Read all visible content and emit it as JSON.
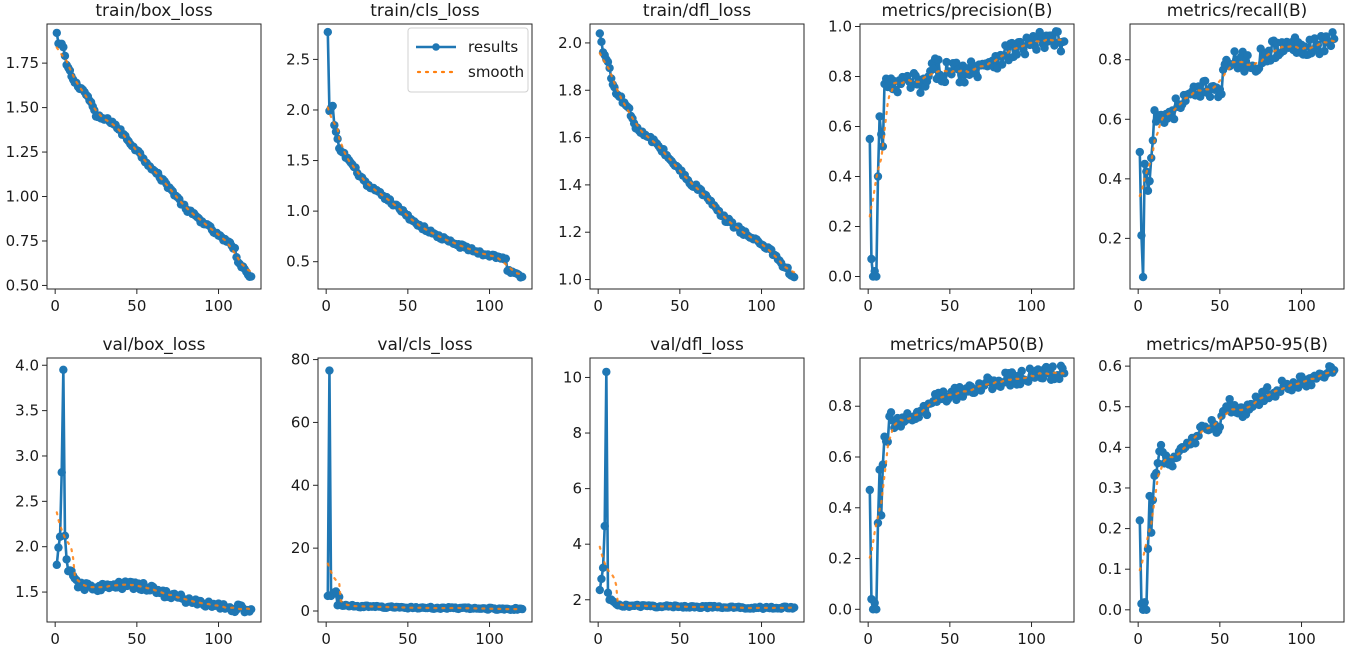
{
  "figure": {
    "colors": {
      "results": "#1f77b4",
      "smooth": "#ff7f0e",
      "frame": "#262626"
    },
    "legend": {
      "entries": [
        "results",
        "smooth"
      ],
      "panel": "train/cls_loss",
      "placement": "upper-right"
    }
  },
  "chart_data": [
    {
      "type": "line",
      "title": "train/box_loss",
      "xlabel": "",
      "ylabel": "",
      "xlim": [
        -5,
        126
      ],
      "ylim": [
        0.48,
        1.97
      ],
      "xticks": [
        0,
        50,
        100
      ],
      "yticks": [
        0.5,
        0.75,
        1.0,
        1.25,
        1.5,
        1.75
      ],
      "ytick_labels": [
        "0.50",
        "0.75",
        "1.00",
        "1.25",
        "1.50",
        "1.75"
      ],
      "epochs": 120,
      "series": [
        {
          "name": "results",
          "anchors": [
            [
              1,
              1.92
            ],
            [
              2,
              1.86
            ],
            [
              5,
              1.84
            ],
            [
              7,
              1.74
            ],
            [
              12,
              1.64
            ],
            [
              17,
              1.6
            ],
            [
              22,
              1.53
            ],
            [
              25,
              1.45
            ],
            [
              35,
              1.42
            ],
            [
              50,
              1.26
            ],
            [
              60,
              1.15
            ],
            [
              70,
              1.05
            ],
            [
              80,
              0.93
            ],
            [
              90,
              0.86
            ],
            [
              100,
              0.78
            ],
            [
              110,
              0.71
            ],
            [
              112,
              0.63
            ],
            [
              120,
              0.55
            ]
          ],
          "noise": 0.012
        },
        {
          "name": "smooth",
          "type": "smoothed"
        }
      ],
      "grid": false
    },
    {
      "type": "line",
      "title": "train/cls_loss",
      "xlim": [
        -5,
        126
      ],
      "ylim": [
        0.23,
        2.85
      ],
      "xticks": [
        0,
        50,
        100
      ],
      "yticks": [
        0.5,
        1.0,
        1.5,
        2.0,
        2.5
      ],
      "ytick_labels": [
        "0.5",
        "1.0",
        "1.5",
        "2.0",
        "2.5"
      ],
      "epochs": 120,
      "series": [
        {
          "name": "results",
          "anchors": [
            [
              1,
              2.77
            ],
            [
              2,
              1.99
            ],
            [
              4,
              2.04
            ],
            [
              5,
              1.85
            ],
            [
              8,
              1.62
            ],
            [
              15,
              1.48
            ],
            [
              25,
              1.25
            ],
            [
              35,
              1.15
            ],
            [
              45,
              1.02
            ],
            [
              55,
              0.88
            ],
            [
              65,
              0.78
            ],
            [
              75,
              0.7
            ],
            [
              85,
              0.64
            ],
            [
              95,
              0.58
            ],
            [
              105,
              0.55
            ],
            [
              110,
              0.53
            ],
            [
              111,
              0.41
            ],
            [
              120,
              0.35
            ]
          ],
          "noise": 0.02
        },
        {
          "name": "smooth",
          "type": "smoothed"
        }
      ],
      "grid": false
    },
    {
      "type": "line",
      "title": "train/dfl_loss",
      "xlim": [
        -5,
        126
      ],
      "ylim": [
        0.96,
        2.08
      ],
      "xticks": [
        0,
        50,
        100
      ],
      "yticks": [
        1.0,
        1.2,
        1.4,
        1.6,
        1.8,
        2.0
      ],
      "ytick_labels": [
        "1.0",
        "1.2",
        "1.4",
        "1.6",
        "1.8",
        "2.0"
      ],
      "epochs": 120,
      "series": [
        {
          "name": "results",
          "anchors": [
            [
              1,
              2.04
            ],
            [
              3,
              1.96
            ],
            [
              6,
              1.92
            ],
            [
              8,
              1.85
            ],
            [
              12,
              1.78
            ],
            [
              18,
              1.73
            ],
            [
              22,
              1.66
            ],
            [
              26,
              1.62
            ],
            [
              35,
              1.58
            ],
            [
              45,
              1.5
            ],
            [
              55,
              1.42
            ],
            [
              65,
              1.36
            ],
            [
              75,
              1.27
            ],
            [
              85,
              1.22
            ],
            [
              95,
              1.17
            ],
            [
              105,
              1.13
            ],
            [
              112,
              1.07
            ],
            [
              120,
              1.01
            ]
          ],
          "noise": 0.012
        },
        {
          "name": "smooth",
          "type": "smoothed"
        }
      ],
      "grid": false
    },
    {
      "type": "line",
      "title": "metrics/precision(B)",
      "xlim": [
        -5,
        126
      ],
      "ylim": [
        -0.05,
        1.01
      ],
      "xticks": [
        0,
        50,
        100
      ],
      "yticks": [
        0.0,
        0.2,
        0.4,
        0.6,
        0.8,
        1.0
      ],
      "ytick_labels": [
        "0.0",
        "0.2",
        "0.4",
        "0.6",
        "0.8",
        "1.0"
      ],
      "epochs": 120,
      "series": [
        {
          "name": "results",
          "anchors": [
            [
              1,
              0.55
            ],
            [
              2,
              0.07
            ],
            [
              3,
              0.0
            ],
            [
              5,
              0.0
            ],
            [
              6,
              0.4
            ],
            [
              7,
              0.64
            ],
            [
              9,
              0.52
            ],
            [
              10,
              0.77
            ],
            [
              15,
              0.75
            ],
            [
              25,
              0.78
            ],
            [
              35,
              0.76
            ],
            [
              40,
              0.83
            ],
            [
              50,
              0.82
            ],
            [
              60,
              0.82
            ],
            [
              70,
              0.85
            ],
            [
              80,
              0.88
            ],
            [
              90,
              0.91
            ],
            [
              100,
              0.93
            ],
            [
              110,
              0.94
            ],
            [
              120,
              0.94
            ]
          ],
          "noise": 0.045
        },
        {
          "name": "smooth",
          "type": "smoothed"
        }
      ],
      "grid": false
    },
    {
      "type": "line",
      "title": "metrics/recall(B)",
      "xlim": [
        -5,
        126
      ],
      "ylim": [
        0.03,
        0.92
      ],
      "xticks": [
        0,
        50,
        100
      ],
      "yticks": [
        0.2,
        0.4,
        0.6,
        0.8
      ],
      "ytick_labels": [
        "0.2",
        "0.4",
        "0.6",
        "0.8"
      ],
      "epochs": 120,
      "series": [
        {
          "name": "results",
          "anchors": [
            [
              1,
              0.49
            ],
            [
              2,
              0.21
            ],
            [
              3,
              0.07
            ],
            [
              4,
              0.45
            ],
            [
              6,
              0.36
            ],
            [
              8,
              0.47
            ],
            [
              10,
              0.63
            ],
            [
              15,
              0.6
            ],
            [
              25,
              0.65
            ],
            [
              35,
              0.68
            ],
            [
              45,
              0.71
            ],
            [
              50,
              0.7
            ],
            [
              55,
              0.79
            ],
            [
              60,
              0.8
            ],
            [
              70,
              0.78
            ],
            [
              80,
              0.83
            ],
            [
              90,
              0.84
            ],
            [
              100,
              0.85
            ],
            [
              110,
              0.85
            ],
            [
              120,
              0.87
            ]
          ],
          "noise": 0.035
        },
        {
          "name": "smooth",
          "type": "smoothed"
        }
      ],
      "grid": false
    },
    {
      "type": "line",
      "title": "val/box_loss",
      "xlim": [
        -5,
        126
      ],
      "ylim": [
        1.17,
        4.08
      ],
      "xticks": [
        0,
        50,
        100
      ],
      "yticks": [
        1.5,
        2.0,
        2.5,
        3.0,
        3.5,
        4.0
      ],
      "ytick_labels": [
        "1.5",
        "2.0",
        "2.5",
        "3.0",
        "3.5",
        "4.0"
      ],
      "epochs": 120,
      "series": [
        {
          "name": "results",
          "anchors": [
            [
              1,
              1.8
            ],
            [
              2,
              1.99
            ],
            [
              3,
              2.11
            ],
            [
              4,
              2.82
            ],
            [
              5,
              3.95
            ],
            [
              6,
              2.12
            ],
            [
              7,
              1.86
            ],
            [
              8,
              1.73
            ],
            [
              12,
              1.65
            ],
            [
              15,
              1.56
            ],
            [
              25,
              1.55
            ],
            [
              35,
              1.56
            ],
            [
              45,
              1.58
            ],
            [
              55,
              1.55
            ],
            [
              65,
              1.5
            ],
            [
              75,
              1.44
            ],
            [
              85,
              1.39
            ],
            [
              95,
              1.36
            ],
            [
              105,
              1.33
            ],
            [
              120,
              1.31
            ]
          ],
          "noise": 0.045
        },
        {
          "name": "smooth",
          "type": "smoothed"
        }
      ],
      "grid": false
    },
    {
      "type": "line",
      "title": "val/cls_loss",
      "xlim": [
        -5,
        126
      ],
      "ylim": [
        -3.5,
        80.5
      ],
      "xticks": [
        0,
        50,
        100
      ],
      "yticks": [
        0,
        20,
        40,
        60,
        80
      ],
      "ytick_labels": [
        "0",
        "20",
        "40",
        "60",
        "80"
      ],
      "epochs": 120,
      "series": [
        {
          "name": "results",
          "anchors": [
            [
              1,
              4.8
            ],
            [
              2,
              76.5
            ],
            [
              3,
              4.8
            ],
            [
              6,
              6.2
            ],
            [
              7,
              1.8
            ],
            [
              8,
              4.5
            ],
            [
              9,
              2.0
            ],
            [
              15,
              1.6
            ],
            [
              30,
              1.3
            ],
            [
              60,
              1.0
            ],
            [
              90,
              0.8
            ],
            [
              120,
              0.6
            ]
          ],
          "noise": 0.3
        },
        {
          "name": "smooth",
          "type": "smoothed"
        }
      ],
      "grid": false
    },
    {
      "type": "line",
      "title": "val/dfl_loss",
      "xlim": [
        -5,
        126
      ],
      "ylim": [
        1.2,
        10.7
      ],
      "xticks": [
        0,
        50,
        100
      ],
      "yticks": [
        2,
        4,
        6,
        8,
        10
      ],
      "ytick_labels": [
        "2",
        "4",
        "6",
        "8",
        "10"
      ],
      "epochs": 120,
      "series": [
        {
          "name": "results",
          "anchors": [
            [
              1,
              2.35
            ],
            [
              2,
              2.75
            ],
            [
              3,
              3.15
            ],
            [
              4,
              4.65
            ],
            [
              5,
              10.2
            ],
            [
              6,
              2.25
            ],
            [
              7,
              2.0
            ],
            [
              9,
              1.95
            ],
            [
              12,
              1.8
            ],
            [
              20,
              1.78
            ],
            [
              40,
              1.76
            ],
            [
              60,
              1.75
            ],
            [
              80,
              1.72
            ],
            [
              100,
              1.71
            ],
            [
              120,
              1.72
            ]
          ],
          "noise": 0.04
        },
        {
          "name": "smooth",
          "type": "smoothed"
        }
      ],
      "grid": false
    },
    {
      "type": "line",
      "title": "metrics/mAP50(B)",
      "xlim": [
        -5,
        126
      ],
      "ylim": [
        -0.05,
        0.99
      ],
      "xticks": [
        0,
        50,
        100
      ],
      "yticks": [
        0.0,
        0.2,
        0.4,
        0.6,
        0.8
      ],
      "ytick_labels": [
        "0.0",
        "0.2",
        "0.4",
        "0.6",
        "0.8"
      ],
      "epochs": 120,
      "series": [
        {
          "name": "results",
          "anchors": [
            [
              1,
              0.47
            ],
            [
              2,
              0.04
            ],
            [
              3,
              0.0
            ],
            [
              5,
              0.0
            ],
            [
              6,
              0.34
            ],
            [
              7,
              0.55
            ],
            [
              8,
              0.37
            ],
            [
              9,
              0.57
            ],
            [
              10,
              0.68
            ],
            [
              12,
              0.66
            ],
            [
              13,
              0.76
            ],
            [
              20,
              0.72
            ],
            [
              25,
              0.75
            ],
            [
              35,
              0.78
            ],
            [
              40,
              0.82
            ],
            [
              50,
              0.84
            ],
            [
              60,
              0.87
            ],
            [
              70,
              0.88
            ],
            [
              80,
              0.9
            ],
            [
              90,
              0.91
            ],
            [
              100,
              0.92
            ],
            [
              110,
              0.93
            ],
            [
              120,
              0.93
            ]
          ],
          "noise": 0.03
        },
        {
          "name": "smooth",
          "type": "smoothed"
        }
      ],
      "grid": false
    },
    {
      "type": "line",
      "title": "metrics/mAP50-95(B)",
      "xlim": [
        -5,
        126
      ],
      "ylim": [
        -0.03,
        0.62
      ],
      "xticks": [
        0,
        50,
        100
      ],
      "yticks": [
        0.0,
        0.1,
        0.2,
        0.3,
        0.4,
        0.5,
        0.6
      ],
      "ytick_labels": [
        "0.0",
        "0.1",
        "0.2",
        "0.3",
        "0.4",
        "0.5",
        "0.6"
      ],
      "epochs": 120,
      "series": [
        {
          "name": "results",
          "anchors": [
            [
              1,
              0.22
            ],
            [
              2,
              0.015
            ],
            [
              3,
              0.0
            ],
            [
              5,
              0.0
            ],
            [
              6,
              0.15
            ],
            [
              7,
              0.28
            ],
            [
              8,
              0.19
            ],
            [
              9,
              0.27
            ],
            [
              10,
              0.33
            ],
            [
              13,
              0.39
            ],
            [
              20,
              0.36
            ],
            [
              25,
              0.39
            ],
            [
              35,
              0.41
            ],
            [
              40,
              0.45
            ],
            [
              50,
              0.45
            ],
            [
              55,
              0.5
            ],
            [
              65,
              0.49
            ],
            [
              75,
              0.52
            ],
            [
              85,
              0.54
            ],
            [
              95,
              0.56
            ],
            [
              105,
              0.57
            ],
            [
              115,
              0.58
            ],
            [
              120,
              0.59
            ]
          ],
          "noise": 0.02
        },
        {
          "name": "smooth",
          "type": "smoothed"
        }
      ],
      "grid": false
    }
  ]
}
